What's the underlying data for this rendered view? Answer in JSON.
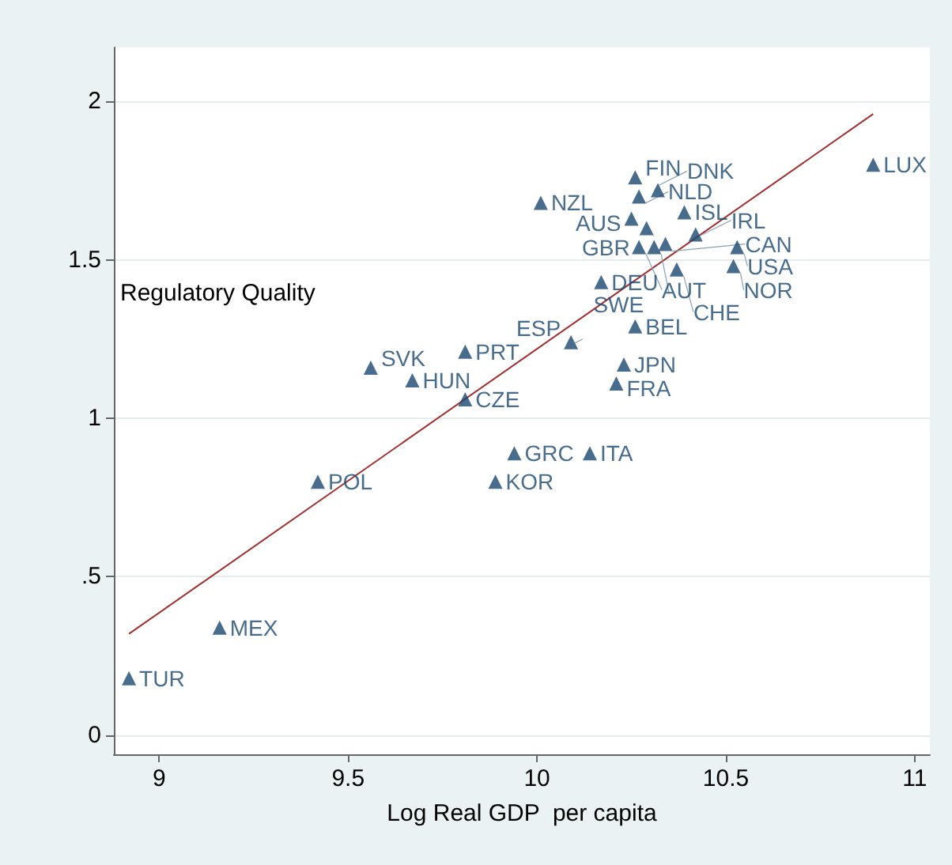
{
  "chart_data": {
    "type": "scatter",
    "xlabel": "Log Real GDP  per capita",
    "ylabel": "Regulatory Quality",
    "xlim": [
      8.88,
      11.04
    ],
    "xticks": [
      9,
      9.5,
      10,
      10.5,
      11
    ],
    "ylim": [
      -0.06,
      2.17
    ],
    "yticks": [
      0,
      {
        "value": 0.5,
        "label": ".5"
      },
      1,
      1.5,
      2
    ],
    "grid": "y",
    "marker": "triangle",
    "series": [
      {
        "type": "scatter",
        "color": "#1a476f",
        "x": [
          8.92,
          9.16,
          9.42,
          9.56,
          9.67,
          9.81,
          9.81,
          9.89,
          9.94,
          10.14,
          10.01,
          10.09,
          10.17,
          10.26,
          10.23,
          10.21,
          10.26,
          10.27,
          10.32,
          10.39,
          10.25,
          10.29,
          10.27,
          10.31,
          10.34,
          10.42,
          10.53,
          10.52,
          10.37,
          10.89
        ],
        "values": [
          0.18,
          0.34,
          0.8,
          1.16,
          1.12,
          1.21,
          1.06,
          0.8,
          0.89,
          0.89,
          1.68,
          1.24,
          1.43,
          1.29,
          1.17,
          1.11,
          1.76,
          1.7,
          1.72,
          1.65,
          1.63,
          1.6,
          1.54,
          1.54,
          1.55,
          1.58,
          1.54,
          1.48,
          1.47,
          1.8
        ],
        "value_labels": [
          "TUR",
          "MEX",
          "POL",
          "SVK",
          "HUN",
          "PRT",
          "CZE",
          "KOR",
          "GRC",
          "ITA",
          "NZL",
          "ESP",
          "DEU",
          "BEL",
          "JPN",
          "FRA",
          "FIN",
          "NLD",
          "DNK",
          "ISL",
          "AUS",
          "GBR",
          "AUT",
          "SWE",
          "CAN",
          "IRL",
          "USA",
          "NOR",
          "CHE",
          "LUX"
        ]
      },
      {
        "type": "line",
        "color": "#a03030",
        "marker": "none",
        "x": [
          8.92,
          10.89
        ],
        "values": [
          0.32,
          1.96
        ]
      }
    ]
  }
}
